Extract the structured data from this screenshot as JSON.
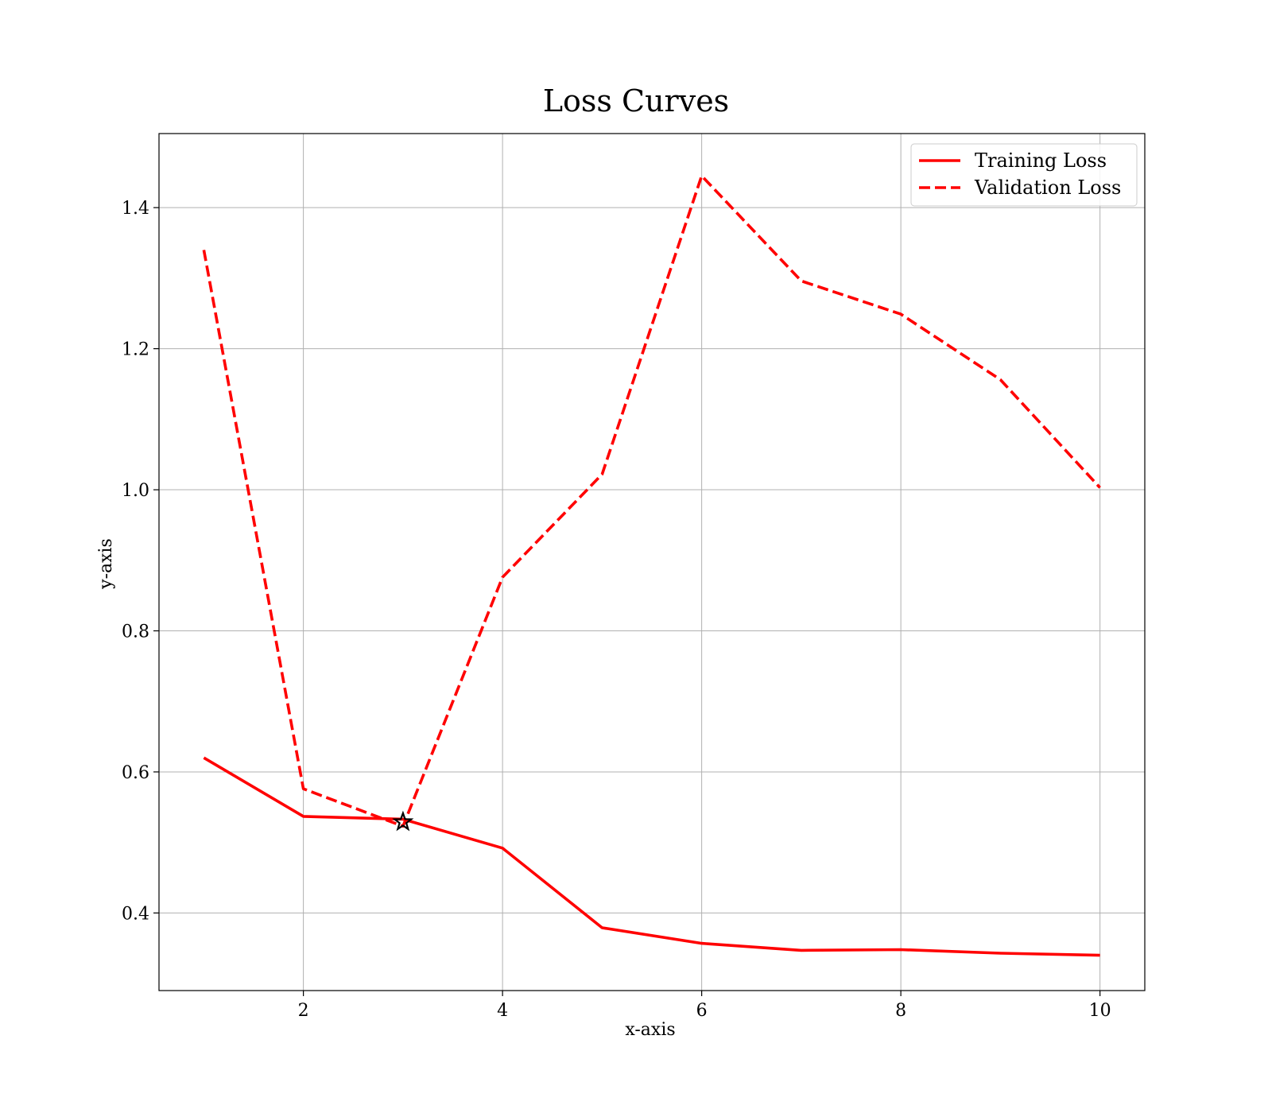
{
  "chart_data": {
    "type": "line",
    "title": "Loss Curves",
    "xlabel": "x-axis",
    "ylabel": "y-axis",
    "xlim": [
      0.55,
      10.45
    ],
    "ylim": [
      0.29,
      1.505
    ],
    "xticks": [
      2,
      4,
      6,
      8,
      10
    ],
    "yticks": [
      0.4,
      0.6,
      0.8,
      1.0,
      1.2,
      1.4
    ],
    "x": [
      1,
      2,
      3,
      4,
      5,
      6,
      7,
      8,
      9,
      10
    ],
    "series": [
      {
        "name": "Training Loss",
        "style": "solid",
        "color": "#ff0000",
        "values": [
          0.62,
          0.537,
          0.533,
          0.492,
          0.379,
          0.357,
          0.347,
          0.348,
          0.343,
          0.34
        ]
      },
      {
        "name": "Validation Loss",
        "style": "dashed",
        "color": "#ff0000",
        "values": [
          1.34,
          0.576,
          0.523,
          0.876,
          1.022,
          1.445,
          1.296,
          1.249,
          1.156,
          1.003
        ]
      }
    ],
    "marker": {
      "x": 3,
      "y": 0.529,
      "shape": "star",
      "color": "#000000"
    },
    "grid": true,
    "legend": "top-right"
  }
}
